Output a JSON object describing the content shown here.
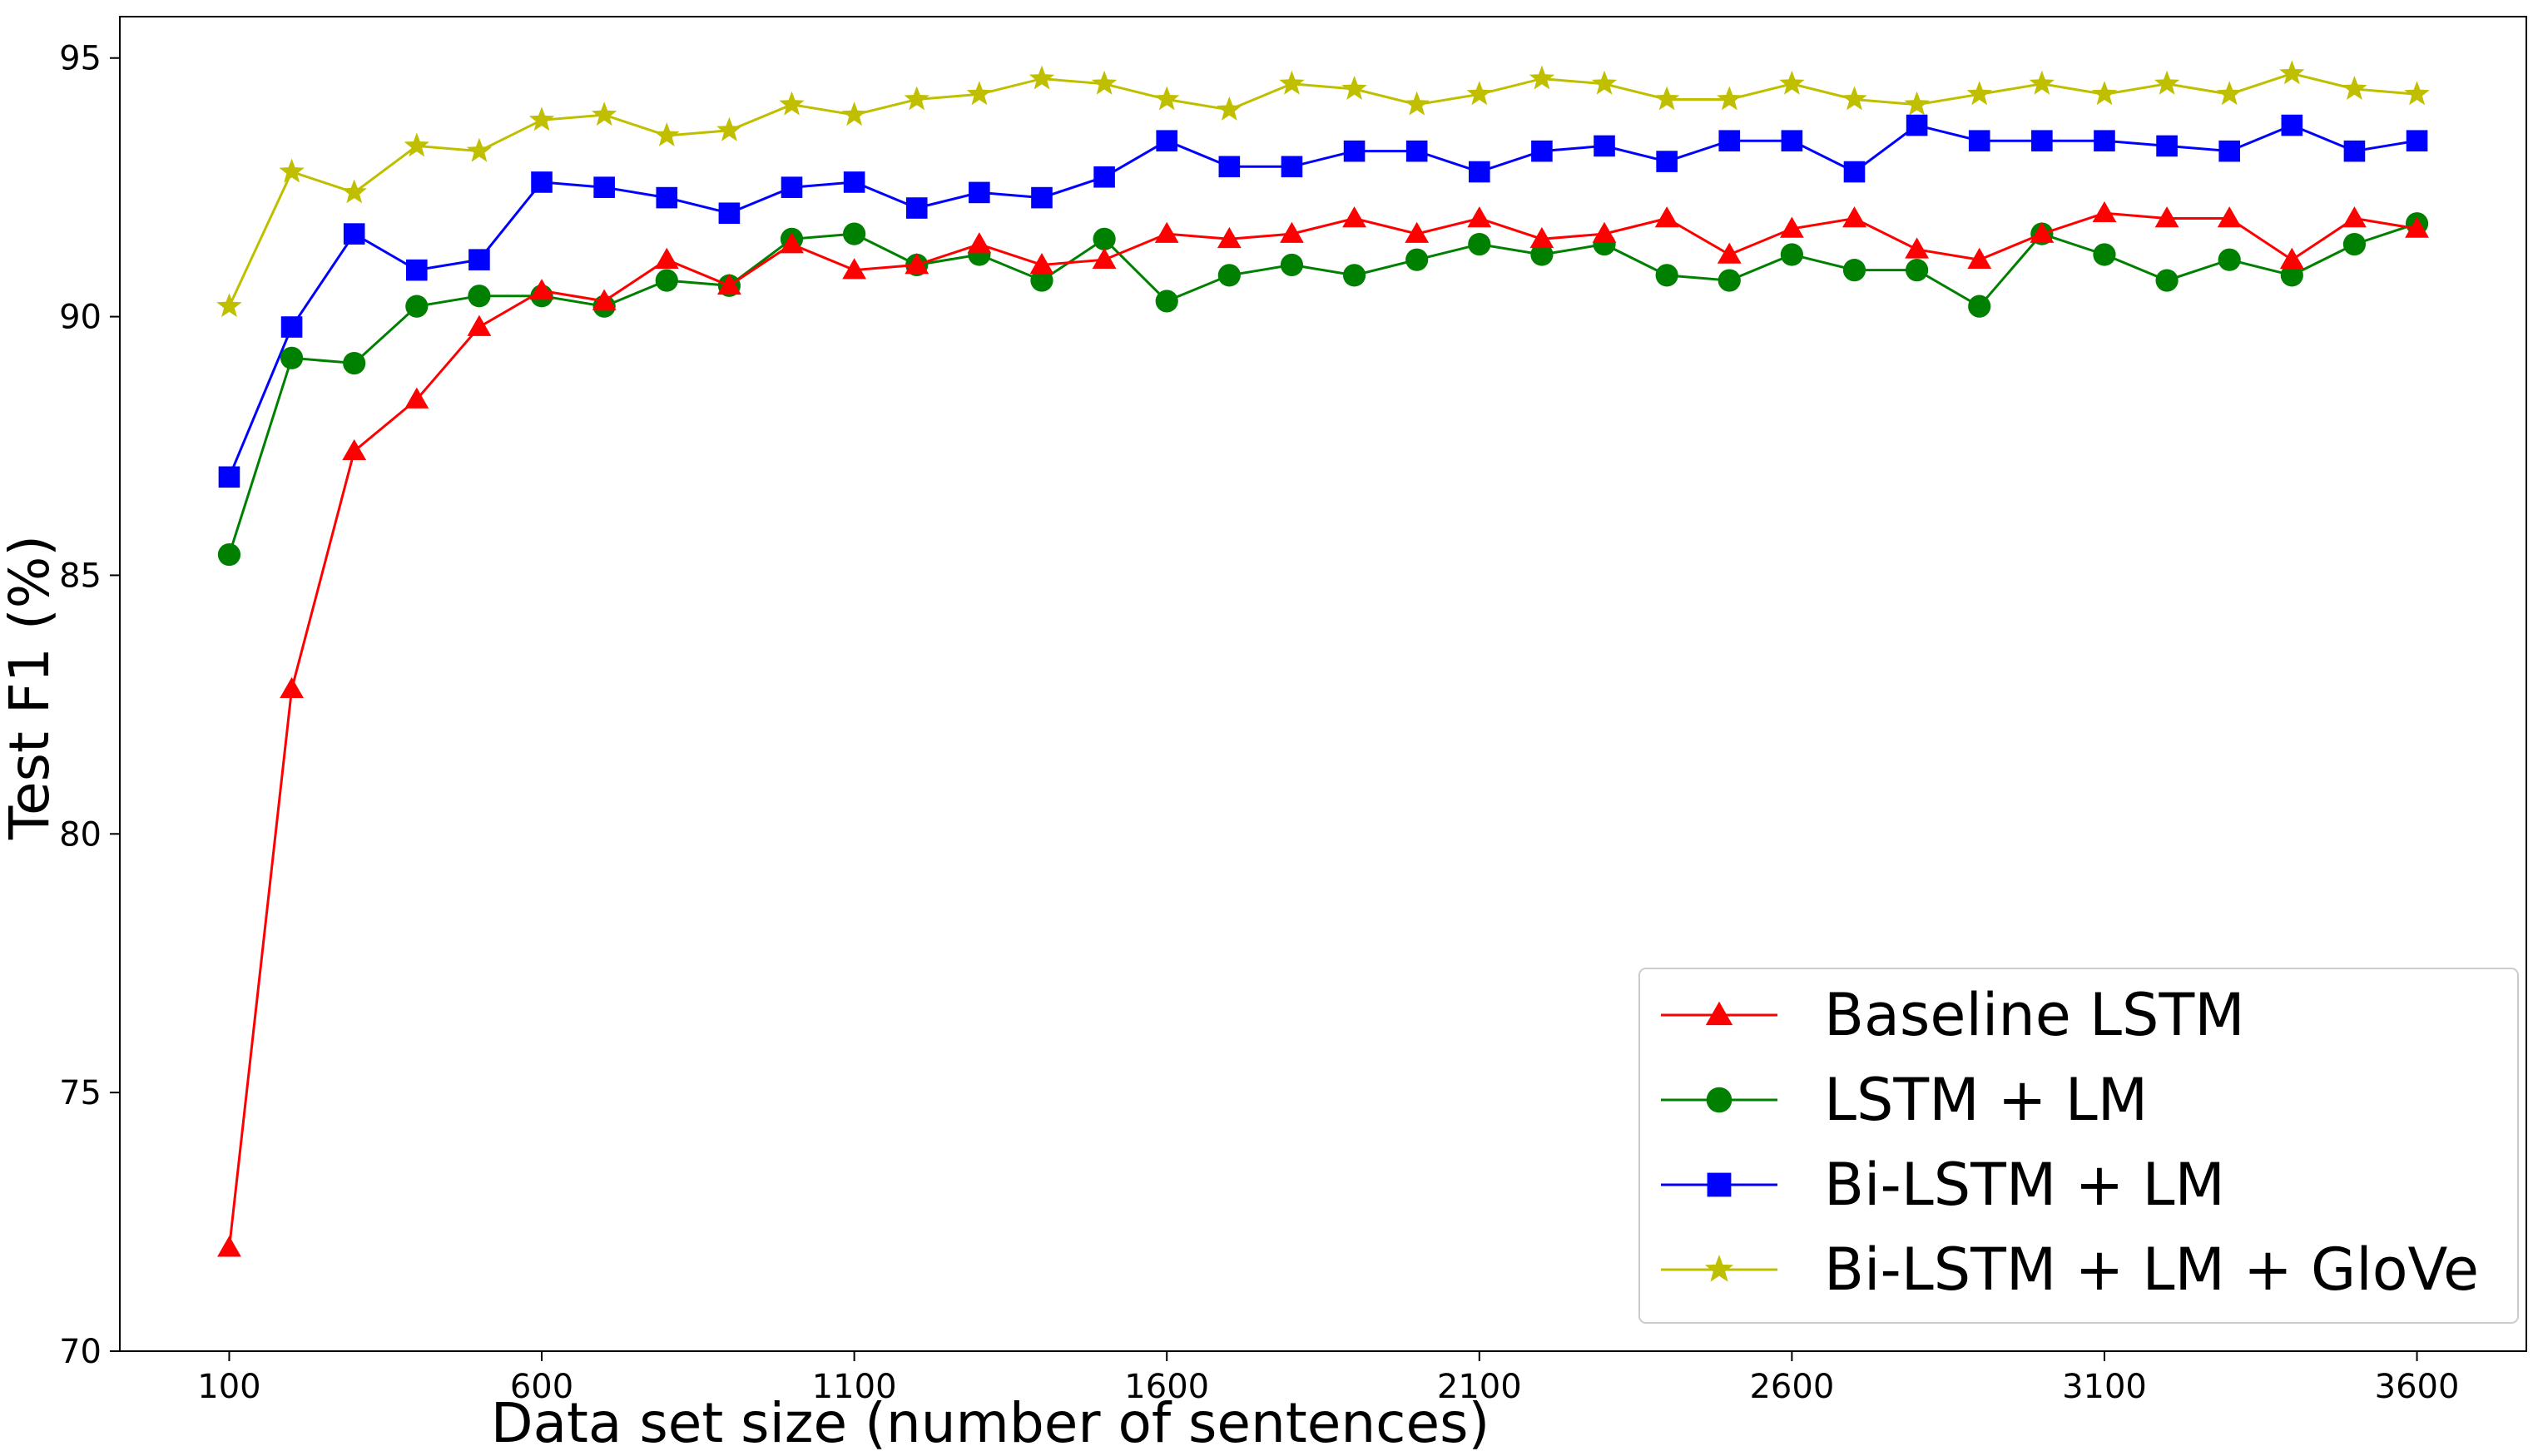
{
  "chart_data": {
    "type": "line",
    "title": "",
    "xlabel": "Data set size (number of sentences)",
    "ylabel": "Test F1 (%)",
    "xlim": [
      -75,
      3775
    ],
    "ylim": [
      70,
      95.8
    ],
    "xticks": [
      100,
      600,
      1100,
      1600,
      2100,
      2600,
      3100,
      3600
    ],
    "yticks": [
      70,
      75,
      80,
      85,
      90,
      95
    ],
    "grid": false,
    "legend_position": "lower-right",
    "x": [
      100,
      200,
      300,
      400,
      500,
      600,
      700,
      800,
      900,
      1000,
      1100,
      1200,
      1300,
      1400,
      1500,
      1600,
      1700,
      1800,
      1900,
      2000,
      2100,
      2200,
      2300,
      2400,
      2500,
      2600,
      2700,
      2800,
      2900,
      3000,
      3100,
      3200,
      3300,
      3400,
      3500,
      3600
    ],
    "series": [
      {
        "name": "Baseline LSTM",
        "color": "#ff0000",
        "marker": "triangle",
        "values": [
          72.0,
          82.8,
          87.4,
          88.4,
          89.8,
          90.5,
          90.3,
          91.1,
          90.6,
          91.4,
          90.9,
          91.0,
          91.4,
          91.0,
          91.1,
          91.6,
          91.5,
          91.6,
          91.9,
          91.6,
          91.9,
          91.5,
          91.6,
          91.9,
          91.2,
          91.7,
          91.9,
          91.3,
          91.1,
          91.6,
          92.0,
          91.9,
          91.9,
          91.1,
          91.9,
          91.7
        ]
      },
      {
        "name": "LSTM + LM",
        "color": "#008000",
        "marker": "circle",
        "values": [
          85.4,
          89.2,
          89.1,
          90.2,
          90.4,
          90.4,
          90.2,
          90.7,
          90.6,
          91.5,
          91.6,
          91.0,
          91.2,
          90.7,
          91.5,
          90.3,
          90.8,
          91.0,
          90.8,
          91.1,
          91.4,
          91.2,
          91.4,
          90.8,
          90.7,
          91.2,
          90.9,
          90.9,
          90.2,
          91.6,
          91.2,
          90.7,
          91.1,
          90.8,
          91.4,
          91.8
        ]
      },
      {
        "name": "Bi-LSTM + LM",
        "color": "#0000ff",
        "marker": "square",
        "values": [
          86.9,
          89.8,
          91.6,
          90.9,
          91.1,
          92.6,
          92.5,
          92.3,
          92.0,
          92.5,
          92.6,
          92.1,
          92.4,
          92.3,
          92.7,
          93.4,
          92.9,
          92.9,
          93.2,
          93.2,
          92.8,
          93.2,
          93.3,
          93.0,
          93.4,
          93.4,
          92.8,
          93.7,
          93.4,
          93.4,
          93.4,
          93.3,
          93.2,
          93.7,
          93.2,
          93.4
        ]
      },
      {
        "name": "Bi-LSTM + LM + GloVe",
        "color": "#bfbf00",
        "marker": "star",
        "values": [
          90.2,
          92.8,
          92.4,
          93.3,
          93.2,
          93.8,
          93.9,
          93.5,
          93.6,
          94.1,
          93.9,
          94.2,
          94.3,
          94.6,
          94.5,
          94.2,
          94.0,
          94.5,
          94.4,
          94.1,
          94.3,
          94.6,
          94.5,
          94.2,
          94.2,
          94.5,
          94.2,
          94.1,
          94.3,
          94.5,
          94.3,
          94.5,
          94.3,
          94.7,
          94.4,
          94.3
        ]
      }
    ]
  }
}
